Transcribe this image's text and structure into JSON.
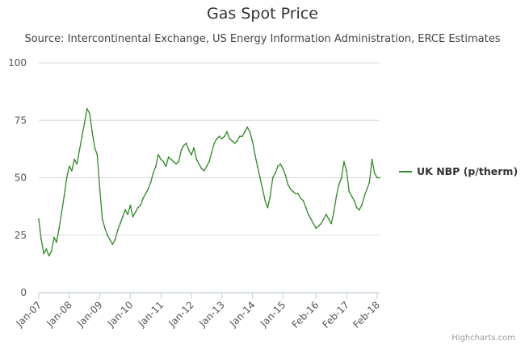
{
  "chart_data": {
    "type": "line",
    "title": "Gas Spot Price",
    "subtitle": "Source: Intercontinental Exchange, US Energy Information Administration, ERCE Estimates",
    "xlabel": "",
    "ylabel": "",
    "ylim": [
      0,
      100
    ],
    "yticks": [
      0,
      25,
      50,
      75,
      100
    ],
    "xlim": [
      "2007-01",
      "2018-03"
    ],
    "x_tick_labels": [
      "Jan-07",
      "Jan-08",
      "Jan-09",
      "Jan-10",
      "Jan-11",
      "Jan-12",
      "Jan-13",
      "Jan-14",
      "Jan-15",
      "Feb-16",
      "Feb-17",
      "Feb-18"
    ],
    "x_tick_dates": [
      "2007-01",
      "2008-01",
      "2009-01",
      "2010-01",
      "2011-01",
      "2012-01",
      "2013-01",
      "2014-01",
      "2015-01",
      "2016-02",
      "2017-02",
      "2018-02"
    ],
    "grid": "horizontal",
    "legend_position": "right",
    "series": [
      {
        "name": "UK NBP (p/therm)",
        "color": "#2e8b24",
        "points": [
          [
            "2007-01",
            32
          ],
          [
            "2007-02",
            23
          ],
          [
            "2007-03",
            17
          ],
          [
            "2007-04",
            19
          ],
          [
            "2007-05",
            16
          ],
          [
            "2007-06",
            18
          ],
          [
            "2007-07",
            24
          ],
          [
            "2007-08",
            22
          ],
          [
            "2007-09",
            28
          ],
          [
            "2007-10",
            35
          ],
          [
            "2007-11",
            42
          ],
          [
            "2007-12",
            50
          ],
          [
            "2008-01",
            55
          ],
          [
            "2008-02",
            53
          ],
          [
            "2008-03",
            58
          ],
          [
            "2008-04",
            56
          ],
          [
            "2008-05",
            62
          ],
          [
            "2008-06",
            68
          ],
          [
            "2008-07",
            74
          ],
          [
            "2008-08",
            80
          ],
          [
            "2008-09",
            78
          ],
          [
            "2008-10",
            70
          ],
          [
            "2008-11",
            63
          ],
          [
            "2008-12",
            60
          ],
          [
            "2009-01",
            45
          ],
          [
            "2009-02",
            32
          ],
          [
            "2009-03",
            28
          ],
          [
            "2009-04",
            25
          ],
          [
            "2009-05",
            23
          ],
          [
            "2009-06",
            21
          ],
          [
            "2009-07",
            23
          ],
          [
            "2009-08",
            27
          ],
          [
            "2009-09",
            30
          ],
          [
            "2009-10",
            33
          ],
          [
            "2009-11",
            36
          ],
          [
            "2009-12",
            34
          ],
          [
            "2010-01",
            38
          ],
          [
            "2010-02",
            33
          ],
          [
            "2010-03",
            35
          ],
          [
            "2010-04",
            37
          ],
          [
            "2010-05",
            38
          ],
          [
            "2010-06",
            41
          ],
          [
            "2010-07",
            43
          ],
          [
            "2010-08",
            45
          ],
          [
            "2010-09",
            48
          ],
          [
            "2010-10",
            52
          ],
          [
            "2010-11",
            55
          ],
          [
            "2010-12",
            60
          ],
          [
            "2011-01",
            58
          ],
          [
            "2011-02",
            57
          ],
          [
            "2011-03",
            55
          ],
          [
            "2011-04",
            59
          ],
          [
            "2011-05",
            58
          ],
          [
            "2011-06",
            57
          ],
          [
            "2011-07",
            56
          ],
          [
            "2011-08",
            57
          ],
          [
            "2011-09",
            62
          ],
          [
            "2011-10",
            64
          ],
          [
            "2011-11",
            65
          ],
          [
            "2011-12",
            62
          ],
          [
            "2012-01",
            60
          ],
          [
            "2012-02",
            63
          ],
          [
            "2012-03",
            58
          ],
          [
            "2012-04",
            56
          ],
          [
            "2012-05",
            54
          ],
          [
            "2012-06",
            53
          ],
          [
            "2012-07",
            55
          ],
          [
            "2012-08",
            57
          ],
          [
            "2012-09",
            61
          ],
          [
            "2012-10",
            65
          ],
          [
            "2012-11",
            67
          ],
          [
            "2012-12",
            68
          ],
          [
            "2013-01",
            67
          ],
          [
            "2013-02",
            68
          ],
          [
            "2013-03",
            70
          ],
          [
            "2013-04",
            67
          ],
          [
            "2013-05",
            66
          ],
          [
            "2013-06",
            65
          ],
          [
            "2013-07",
            66
          ],
          [
            "2013-08",
            68
          ],
          [
            "2013-09",
            68
          ],
          [
            "2013-10",
            70
          ],
          [
            "2013-11",
            72
          ],
          [
            "2013-12",
            70
          ],
          [
            "2014-01",
            66
          ],
          [
            "2014-02",
            60
          ],
          [
            "2014-03",
            55
          ],
          [
            "2014-04",
            50
          ],
          [
            "2014-05",
            45
          ],
          [
            "2014-06",
            40
          ],
          [
            "2014-07",
            37
          ],
          [
            "2014-08",
            42
          ],
          [
            "2014-09",
            50
          ],
          [
            "2014-10",
            52
          ],
          [
            "2014-11",
            55
          ],
          [
            "2014-12",
            56
          ],
          [
            "2015-01",
            54
          ],
          [
            "2015-02",
            51
          ],
          [
            "2015-03",
            47
          ],
          [
            "2015-04",
            45
          ],
          [
            "2015-05",
            44
          ],
          [
            "2015-06",
            43
          ],
          [
            "2015-07",
            43
          ],
          [
            "2015-08",
            41
          ],
          [
            "2015-09",
            40
          ],
          [
            "2015-10",
            37
          ],
          [
            "2015-11",
            34
          ],
          [
            "2015-12",
            32
          ],
          [
            "2016-01",
            30
          ],
          [
            "2016-02",
            28
          ],
          [
            "2016-03",
            29
          ],
          [
            "2016-04",
            30
          ],
          [
            "2016-05",
            32
          ],
          [
            "2016-06",
            34
          ],
          [
            "2016-07",
            32
          ],
          [
            "2016-08",
            30
          ],
          [
            "2016-09",
            35
          ],
          [
            "2016-10",
            42
          ],
          [
            "2016-11",
            47
          ],
          [
            "2016-12",
            50
          ],
          [
            "2017-01",
            57
          ],
          [
            "2017-02",
            53
          ],
          [
            "2017-03",
            44
          ],
          [
            "2017-04",
            42
          ],
          [
            "2017-05",
            40
          ],
          [
            "2017-06",
            37
          ],
          [
            "2017-07",
            36
          ],
          [
            "2017-08",
            38
          ],
          [
            "2017-09",
            42
          ],
          [
            "2017-10",
            45
          ],
          [
            "2017-11",
            48
          ],
          [
            "2017-12",
            58
          ],
          [
            "2018-01",
            52
          ],
          [
            "2018-02",
            50
          ],
          [
            "2018-03",
            50
          ]
        ]
      }
    ]
  },
  "credit": "Highcharts.com"
}
